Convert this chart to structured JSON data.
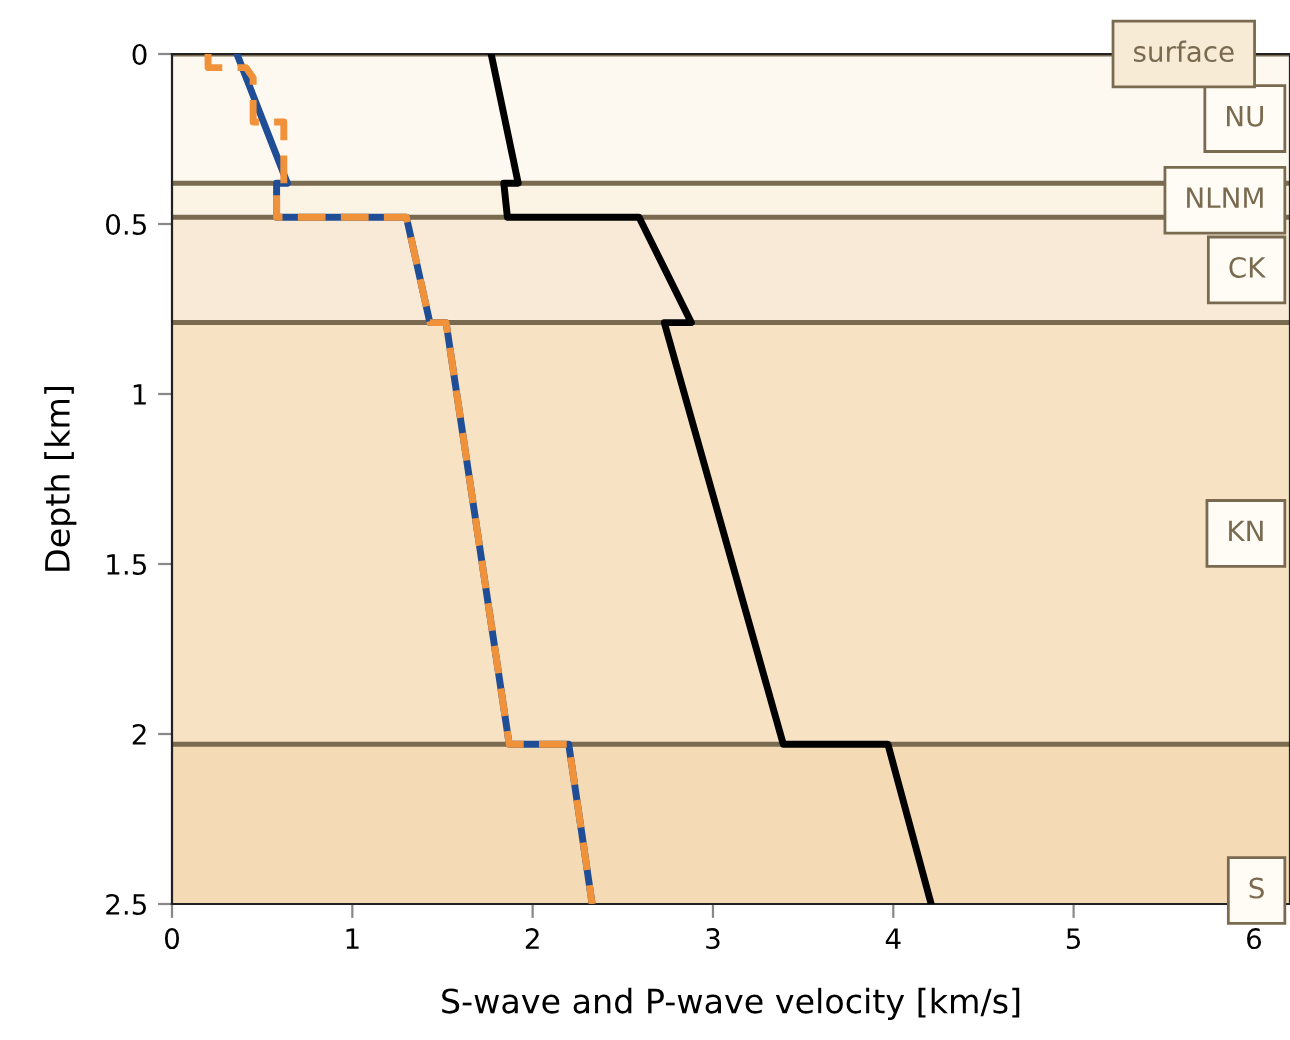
{
  "chart_data": {
    "type": "line",
    "xlabel": "S-wave and P-wave velocity [km/s]",
    "ylabel": "Depth [km]",
    "xlim": [
      0,
      6.2
    ],
    "xticks": [
      0,
      1,
      2,
      3,
      4,
      5,
      6
    ],
    "ylim": [
      2.5,
      0
    ],
    "yticks": [
      0,
      0.5,
      1,
      1.5,
      2,
      2.5
    ],
    "grid": false,
    "series": [
      {
        "color": "#000000",
        "line_style": "solid",
        "x": [
          1.77,
          1.92,
          1.84,
          1.86,
          2.59,
          2.88,
          2.73,
          3.39,
          3.97,
          4.21
        ],
        "values": [
          0,
          0.38,
          0.38,
          0.48,
          0.48,
          0.79,
          0.79,
          2.03,
          2.03,
          2.5
        ]
      },
      {
        "color": "#1f4e96",
        "line_style": "solid",
        "x": [
          0.36,
          0.64,
          0.58,
          0.58,
          1.3,
          1.43,
          1.52,
          1.87,
          2.2,
          2.33
        ],
        "values": [
          0,
          0.38,
          0.38,
          0.48,
          0.48,
          0.79,
          0.79,
          2.03,
          2.03,
          2.5
        ]
      },
      {
        "color": "#f0923a",
        "line_style": "dashed",
        "x": [
          0.2,
          0.2,
          0.41,
          0.45,
          0.45,
          0.62,
          0.62,
          0.58,
          0.58,
          1.3,
          1.43,
          1.52,
          1.87,
          2.2,
          2.33
        ],
        "values": [
          0,
          0.04,
          0.04,
          0.07,
          0.2,
          0.2,
          0.38,
          0.4,
          0.48,
          0.48,
          0.79,
          0.79,
          2.03,
          2.03,
          2.5
        ]
      }
    ],
    "bands": [
      {
        "axis": "y",
        "from": 0,
        "to": 0.38,
        "label": "NU",
        "color": "#fdf9f0"
      },
      {
        "axis": "y",
        "from": 0.38,
        "to": 0.48,
        "label": "NLNM",
        "color": "#fbf3e4"
      },
      {
        "axis": "y",
        "from": 0.48,
        "to": 0.79,
        "label": "CK",
        "color": "#f8ead6"
      },
      {
        "axis": "y",
        "from": 0.79,
        "to": 2.03,
        "label": "KN",
        "color": "#f8e2c4"
      },
      {
        "axis": "y",
        "from": 2.03,
        "to": 2.5,
        "label": "S",
        "color": "#f4dab5"
      }
    ],
    "ref_lines": [
      {
        "axis": "y",
        "value": 0,
        "label": "surface",
        "color": "#7a6a50"
      },
      {
        "axis": "y",
        "value": 0.38,
        "color": "#7a6a50"
      },
      {
        "axis": "y",
        "value": 0.48,
        "color": "#7a6a50"
      },
      {
        "axis": "y",
        "value": 0.79,
        "color": "#7a6a50"
      },
      {
        "axis": "y",
        "value": 2.03,
        "color": "#7a6a50"
      }
    ]
  }
}
